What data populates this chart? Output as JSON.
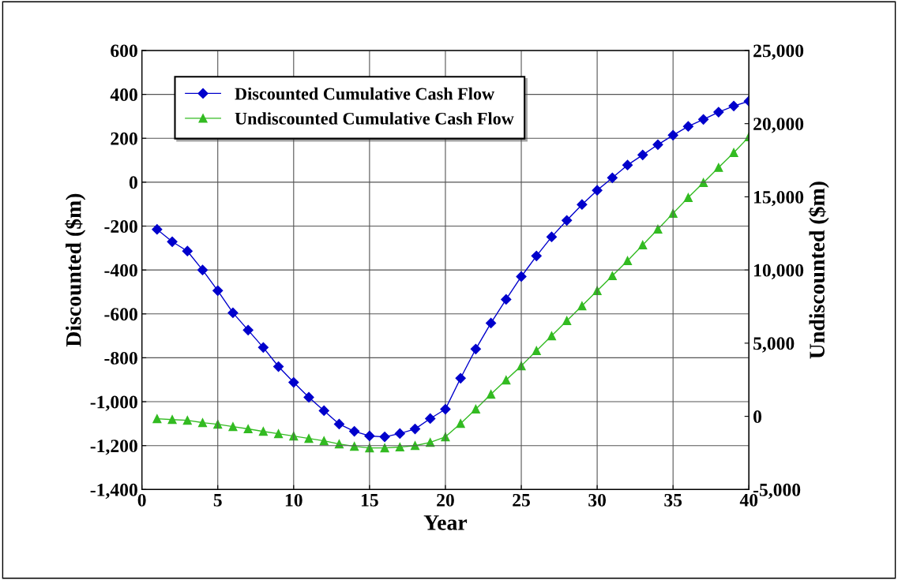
{
  "chart_data": {
    "type": "line",
    "xlabel": "Year",
    "ylabel": "Discounted ($m)",
    "y2label": "Undiscounted ($m)",
    "x": [
      1,
      2,
      3,
      4,
      5,
      6,
      7,
      8,
      9,
      10,
      11,
      12,
      13,
      14,
      15,
      16,
      17,
      18,
      19,
      20,
      21,
      22,
      23,
      24,
      25,
      26,
      27,
      28,
      29,
      30,
      31,
      32,
      33,
      34,
      35,
      36,
      37,
      38,
      39,
      40
    ],
    "series": [
      {
        "name": "Discounted Cumulative Cash Flow",
        "color": "#0000cc",
        "marker": "diamond",
        "values": [
          -215,
          -271,
          -314,
          -400,
          -494,
          -595,
          -674,
          -753,
          -840,
          -912,
          -980,
          -1041,
          -1102,
          -1135,
          -1156,
          -1160,
          -1145,
          -1124,
          -1077,
          -1034,
          -893,
          -760,
          -642,
          -534,
          -430,
          -336,
          -249,
          -174,
          -102,
          -37,
          20,
          78,
          124,
          171,
          214,
          254,
          286,
          319,
          347,
          369
        ]
      },
      {
        "name": "Undiscounted Cumulative Cash Flow",
        "color": "#33bb22",
        "marker": "triangle",
        "axis": "y2",
        "values": [
          -160,
          -220,
          -270,
          -430,
          -540,
          -700,
          -860,
          -1030,
          -1190,
          -1350,
          -1510,
          -1670,
          -1890,
          -2050,
          -2160,
          -2160,
          -2100,
          -2000,
          -1780,
          -1400,
          -490,
          490,
          1510,
          2480,
          3450,
          4480,
          5500,
          6530,
          7550,
          8580,
          9600,
          10630,
          11710,
          12790,
          13870,
          14950,
          15970,
          17000,
          18020,
          19100
        ]
      }
    ],
    "xlim": [
      0,
      40
    ],
    "xticks": [
      0,
      5,
      10,
      15,
      20,
      25,
      30,
      35,
      40
    ],
    "ylim": [
      -1400,
      600
    ],
    "yticks": [
      {
        "value": -1400,
        "label": "-1,400"
      },
      {
        "value": -1200,
        "label": "-1,200"
      },
      {
        "value": -1000,
        "label": "-1,000"
      },
      -800,
      -600,
      -400,
      -200,
      0,
      200,
      400,
      600
    ],
    "y2lim": [
      -5000,
      25000
    ],
    "y2ticks": [
      {
        "value": -5000,
        "label": "-5,000"
      },
      0,
      {
        "value": 5000,
        "label": "5,000"
      },
      {
        "value": 10000,
        "label": "10,000"
      },
      {
        "value": 15000,
        "label": "15,000"
      },
      {
        "value": 20000,
        "label": "20,000"
      },
      {
        "value": 25000,
        "label": "25,000"
      }
    ],
    "grid": true,
    "legend": "top left",
    "line_style": "solid"
  }
}
